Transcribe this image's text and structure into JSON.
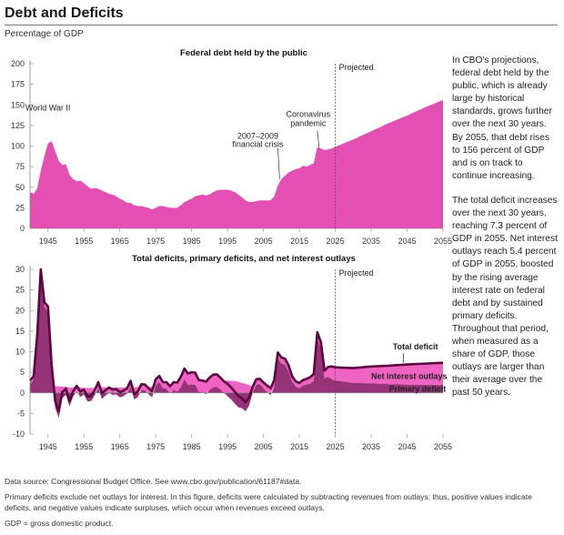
{
  "header": {
    "title": "Debt and Deficits",
    "subtitle": "Percentage of GDP"
  },
  "side_text": {
    "p1": "In CBO's projections, federal debt held by the public, which is already large by historical standards, grows further over the next 30 years. By 2055, that debt rises to 156 percent of GDP and is on track to continue increasing.",
    "p2": "The total deficit increases over the next 30 years, reaching 7.3 percent of GDP in 2055. Net interest outlays reach 5.4 percent of GDP in 2055, boosted by the rising average interest rate on federal debt and by sustained primary deficits. Throughout that period, when measured as a share of GDP, those outlays are larger than their average over the past 50 years."
  },
  "notes": {
    "source": "Data source: Congressional Budget Office. See www.cbo.gov/publication/61187#data.",
    "note": "Primary deficits exclude net outlays for interest. In this figure, deficits were calculated by subtracting revenues from outlays; thus, positive values indicate deficits, and negative values indicate surpluses, which occur when revenues exceed outlays.",
    "gdp": "GDP = gross domestic product."
  },
  "colors": {
    "debt_fill": "#e34fb3",
    "total_deficit_line": "#5a0640",
    "net_interest_fill": "#ef63c2",
    "primary_deficit_fill": "#8a1d67",
    "projected_line": "#555555"
  },
  "chart_data": [
    {
      "type": "area",
      "title": "Federal debt held by the public",
      "xlabel": "",
      "ylabel": "",
      "xlim": [
        1940,
        2055
      ],
      "ylim": [
        0,
        200
      ],
      "yticks": [
        0,
        25,
        50,
        75,
        100,
        125,
        150,
        175,
        200
      ],
      "xticks": [
        1945,
        1955,
        1965,
        1975,
        1985,
        1995,
        2005,
        2015,
        2025,
        2035,
        2045,
        2055
      ],
      "projected_from": 2025,
      "projected_label": "Projected",
      "annotations": [
        {
          "text": "World War II",
          "x": 1946,
          "y": 112
        },
        {
          "text": "2007–2009",
          "x": 2008,
          "y": 80
        },
        {
          "text": "financial crisis",
          "x": 2008,
          "y": 70
        },
        {
          "text": "Coronavirus",
          "x": 2020,
          "y": 123
        },
        {
          "text": "pandemic",
          "x": 2020,
          "y": 112
        }
      ],
      "x": [
        1940,
        1941,
        1942,
        1943,
        1944,
        1945,
        1946,
        1947,
        1948,
        1949,
        1950,
        1951,
        1952,
        1953,
        1954,
        1955,
        1956,
        1957,
        1958,
        1959,
        1960,
        1961,
        1962,
        1963,
        1964,
        1965,
        1966,
        1967,
        1968,
        1969,
        1970,
        1971,
        1972,
        1973,
        1974,
        1975,
        1976,
        1977,
        1978,
        1979,
        1980,
        1981,
        1982,
        1983,
        1984,
        1985,
        1986,
        1987,
        1988,
        1989,
        1990,
        1991,
        1992,
        1993,
        1994,
        1995,
        1996,
        1997,
        1998,
        1999,
        2000,
        2001,
        2002,
        2003,
        2004,
        2005,
        2006,
        2007,
        2008,
        2009,
        2010,
        2011,
        2012,
        2013,
        2014,
        2015,
        2016,
        2017,
        2018,
        2019,
        2020,
        2021,
        2022,
        2023,
        2024,
        2025,
        2030,
        2035,
        2040,
        2045,
        2050,
        2055
      ],
      "values": [
        44,
        42,
        48,
        70,
        88,
        103,
        106,
        94,
        82,
        77,
        78,
        65,
        60,
        57,
        58,
        55,
        51,
        48,
        49,
        48,
        46,
        44,
        42,
        41,
        39,
        36,
        34,
        31,
        31,
        28,
        27,
        27,
        26,
        25,
        23,
        25,
        27,
        27,
        26,
        25,
        25,
        25,
        28,
        32,
        34,
        36,
        39,
        40,
        41,
        40,
        41,
        44,
        46,
        47,
        47,
        47,
        46,
        44,
        41,
        38,
        34,
        32,
        32,
        33,
        34,
        34,
        34,
        34,
        39,
        52,
        60,
        64,
        68,
        70,
        72,
        73,
        76,
        75,
        77,
        79,
        99,
        97,
        95,
        96,
        97,
        99,
        108,
        118,
        128,
        137,
        147,
        156
      ]
    },
    {
      "type": "line",
      "title": "Total deficits, primary deficits, and net interest outlays",
      "xlabel": "",
      "ylabel": "",
      "xlim": [
        1940,
        2055
      ],
      "ylim": [
        -10,
        30
      ],
      "yticks": [
        -10,
        -5,
        0,
        5,
        10,
        15,
        20,
        25,
        30
      ],
      "xticks": [
        1945,
        1955,
        1965,
        1975,
        1985,
        1995,
        2005,
        2015,
        2025,
        2035,
        2045,
        2055
      ],
      "projected_from": 2025,
      "projected_label": "Projected",
      "x": [
        1940,
        1941,
        1942,
        1943,
        1944,
        1945,
        1946,
        1947,
        1948,
        1949,
        1950,
        1951,
        1952,
        1953,
        1954,
        1955,
        1956,
        1957,
        1958,
        1959,
        1960,
        1961,
        1962,
        1963,
        1964,
        1965,
        1966,
        1967,
        1968,
        1969,
        1970,
        1971,
        1972,
        1973,
        1974,
        1975,
        1976,
        1977,
        1978,
        1979,
        1980,
        1981,
        1982,
        1983,
        1984,
        1985,
        1986,
        1987,
        1988,
        1989,
        1990,
        1991,
        1992,
        1993,
        1994,
        1995,
        1996,
        1997,
        1998,
        1999,
        2000,
        2001,
        2002,
        2003,
        2004,
        2005,
        2006,
        2007,
        2008,
        2009,
        2010,
        2011,
        2012,
        2013,
        2014,
        2015,
        2016,
        2017,
        2018,
        2019,
        2020,
        2021,
        2022,
        2023,
        2024,
        2025,
        2030,
        2035,
        2040,
        2045,
        2050,
        2055
      ],
      "series": [
        {
          "name": "Total deficit",
          "values": [
            3,
            4,
            14,
            30,
            22,
            21,
            7,
            -2,
            -4.5,
            0.2,
            1,
            -2,
            0.4,
            1.7,
            0.3,
            0.8,
            -0.9,
            -0.8,
            0.6,
            2.6,
            -0.1,
            0.6,
            1.3,
            0.8,
            0.9,
            0.2,
            0.5,
            1.1,
            2.9,
            -0.3,
            0.3,
            2.1,
            2,
            1.1,
            0.4,
            3.3,
            4.1,
            2.6,
            2.6,
            1.6,
            2.6,
            2.5,
            3.9,
            5.9,
            4.7,
            5,
            4.9,
            3.1,
            3,
            2.7,
            3.7,
            4.4,
            4.5,
            3.7,
            2.8,
            2.2,
            1.3,
            0.3,
            -0.8,
            -1.3,
            -2.3,
            -1.2,
            1.5,
            3.3,
            3.4,
            2.5,
            1.8,
            1.1,
            3.1,
            9.8,
            8.6,
            8.3,
            6.7,
            4,
            2.8,
            2.4,
            3.1,
            3.4,
            3.8,
            4.6,
            14.7,
            12.3,
            5.4,
            6.3,
            6.4,
            6.2,
            6,
            6.4,
            6.6,
            6.9,
            7.1,
            7.3
          ]
        },
        {
          "name": "Net interest outlays",
          "values": [
            0.9,
            0.9,
            0.8,
            1,
            1.2,
            1.5,
            1.7,
            1.6,
            1.6,
            1.5,
            1.5,
            1.3,
            1.3,
            1.3,
            1.3,
            1.2,
            1.2,
            1.2,
            1.2,
            1.3,
            1.4,
            1.3,
            1.3,
            1.3,
            1.3,
            1.3,
            1.3,
            1.3,
            1.3,
            1.3,
            1.4,
            1.4,
            1.4,
            1.4,
            1.5,
            1.5,
            1.5,
            1.5,
            1.6,
            1.7,
            1.9,
            2.2,
            2.6,
            2.6,
            2.8,
            3,
            2.9,
            2.9,
            2.9,
            3,
            3,
            3.1,
            3,
            2.9,
            2.8,
            3,
            2.9,
            2.9,
            2.7,
            2.4,
            2.2,
            1.9,
            1.5,
            1.3,
            1.3,
            1.4,
            1.6,
            1.7,
            1.6,
            1.3,
            1.5,
            1.5,
            1.4,
            1.3,
            1.3,
            1.3,
            1.3,
            1.4,
            1.6,
            1.7,
            1.6,
            1.5,
            1.9,
            2.4,
            3.1,
            3.2,
            3.6,
            4.1,
            4.5,
            4.9,
            5.2,
            5.4
          ]
        },
        {
          "name": "Primary deficit",
          "values": [
            2.1,
            3.1,
            13.2,
            29,
            20.8,
            19.5,
            5.3,
            -3.6,
            -6.1,
            -1.3,
            -0.5,
            -3.3,
            -0.9,
            0.4,
            -1,
            -0.4,
            -2.1,
            -2,
            -0.6,
            1.3,
            -1.5,
            -0.7,
            0,
            -0.5,
            -0.4,
            -1.1,
            -0.8,
            -0.2,
            1.6,
            -1.6,
            -1.1,
            0.7,
            0.6,
            -0.3,
            -1.1,
            1.8,
            2.6,
            1.1,
            1,
            -0.1,
            0.7,
            0.3,
            1.3,
            3.3,
            1.9,
            2,
            2,
            0.2,
            0.1,
            -0.3,
            0.7,
            1.3,
            1.5,
            0.8,
            0,
            -0.8,
            -1.6,
            -2.6,
            -3.5,
            -3.7,
            -4.5,
            -3.1,
            0,
            2,
            2.1,
            1.1,
            0.2,
            -0.6,
            1.5,
            8.5,
            7.1,
            6.8,
            5.3,
            2.7,
            1.5,
            1.1,
            1.8,
            2,
            2.2,
            2.9,
            13.1,
            10.8,
            3.5,
            3.9,
            3.3,
            3,
            2.4,
            2.3,
            2.1,
            2,
            1.9,
            1.9
          ]
        }
      ]
    }
  ]
}
